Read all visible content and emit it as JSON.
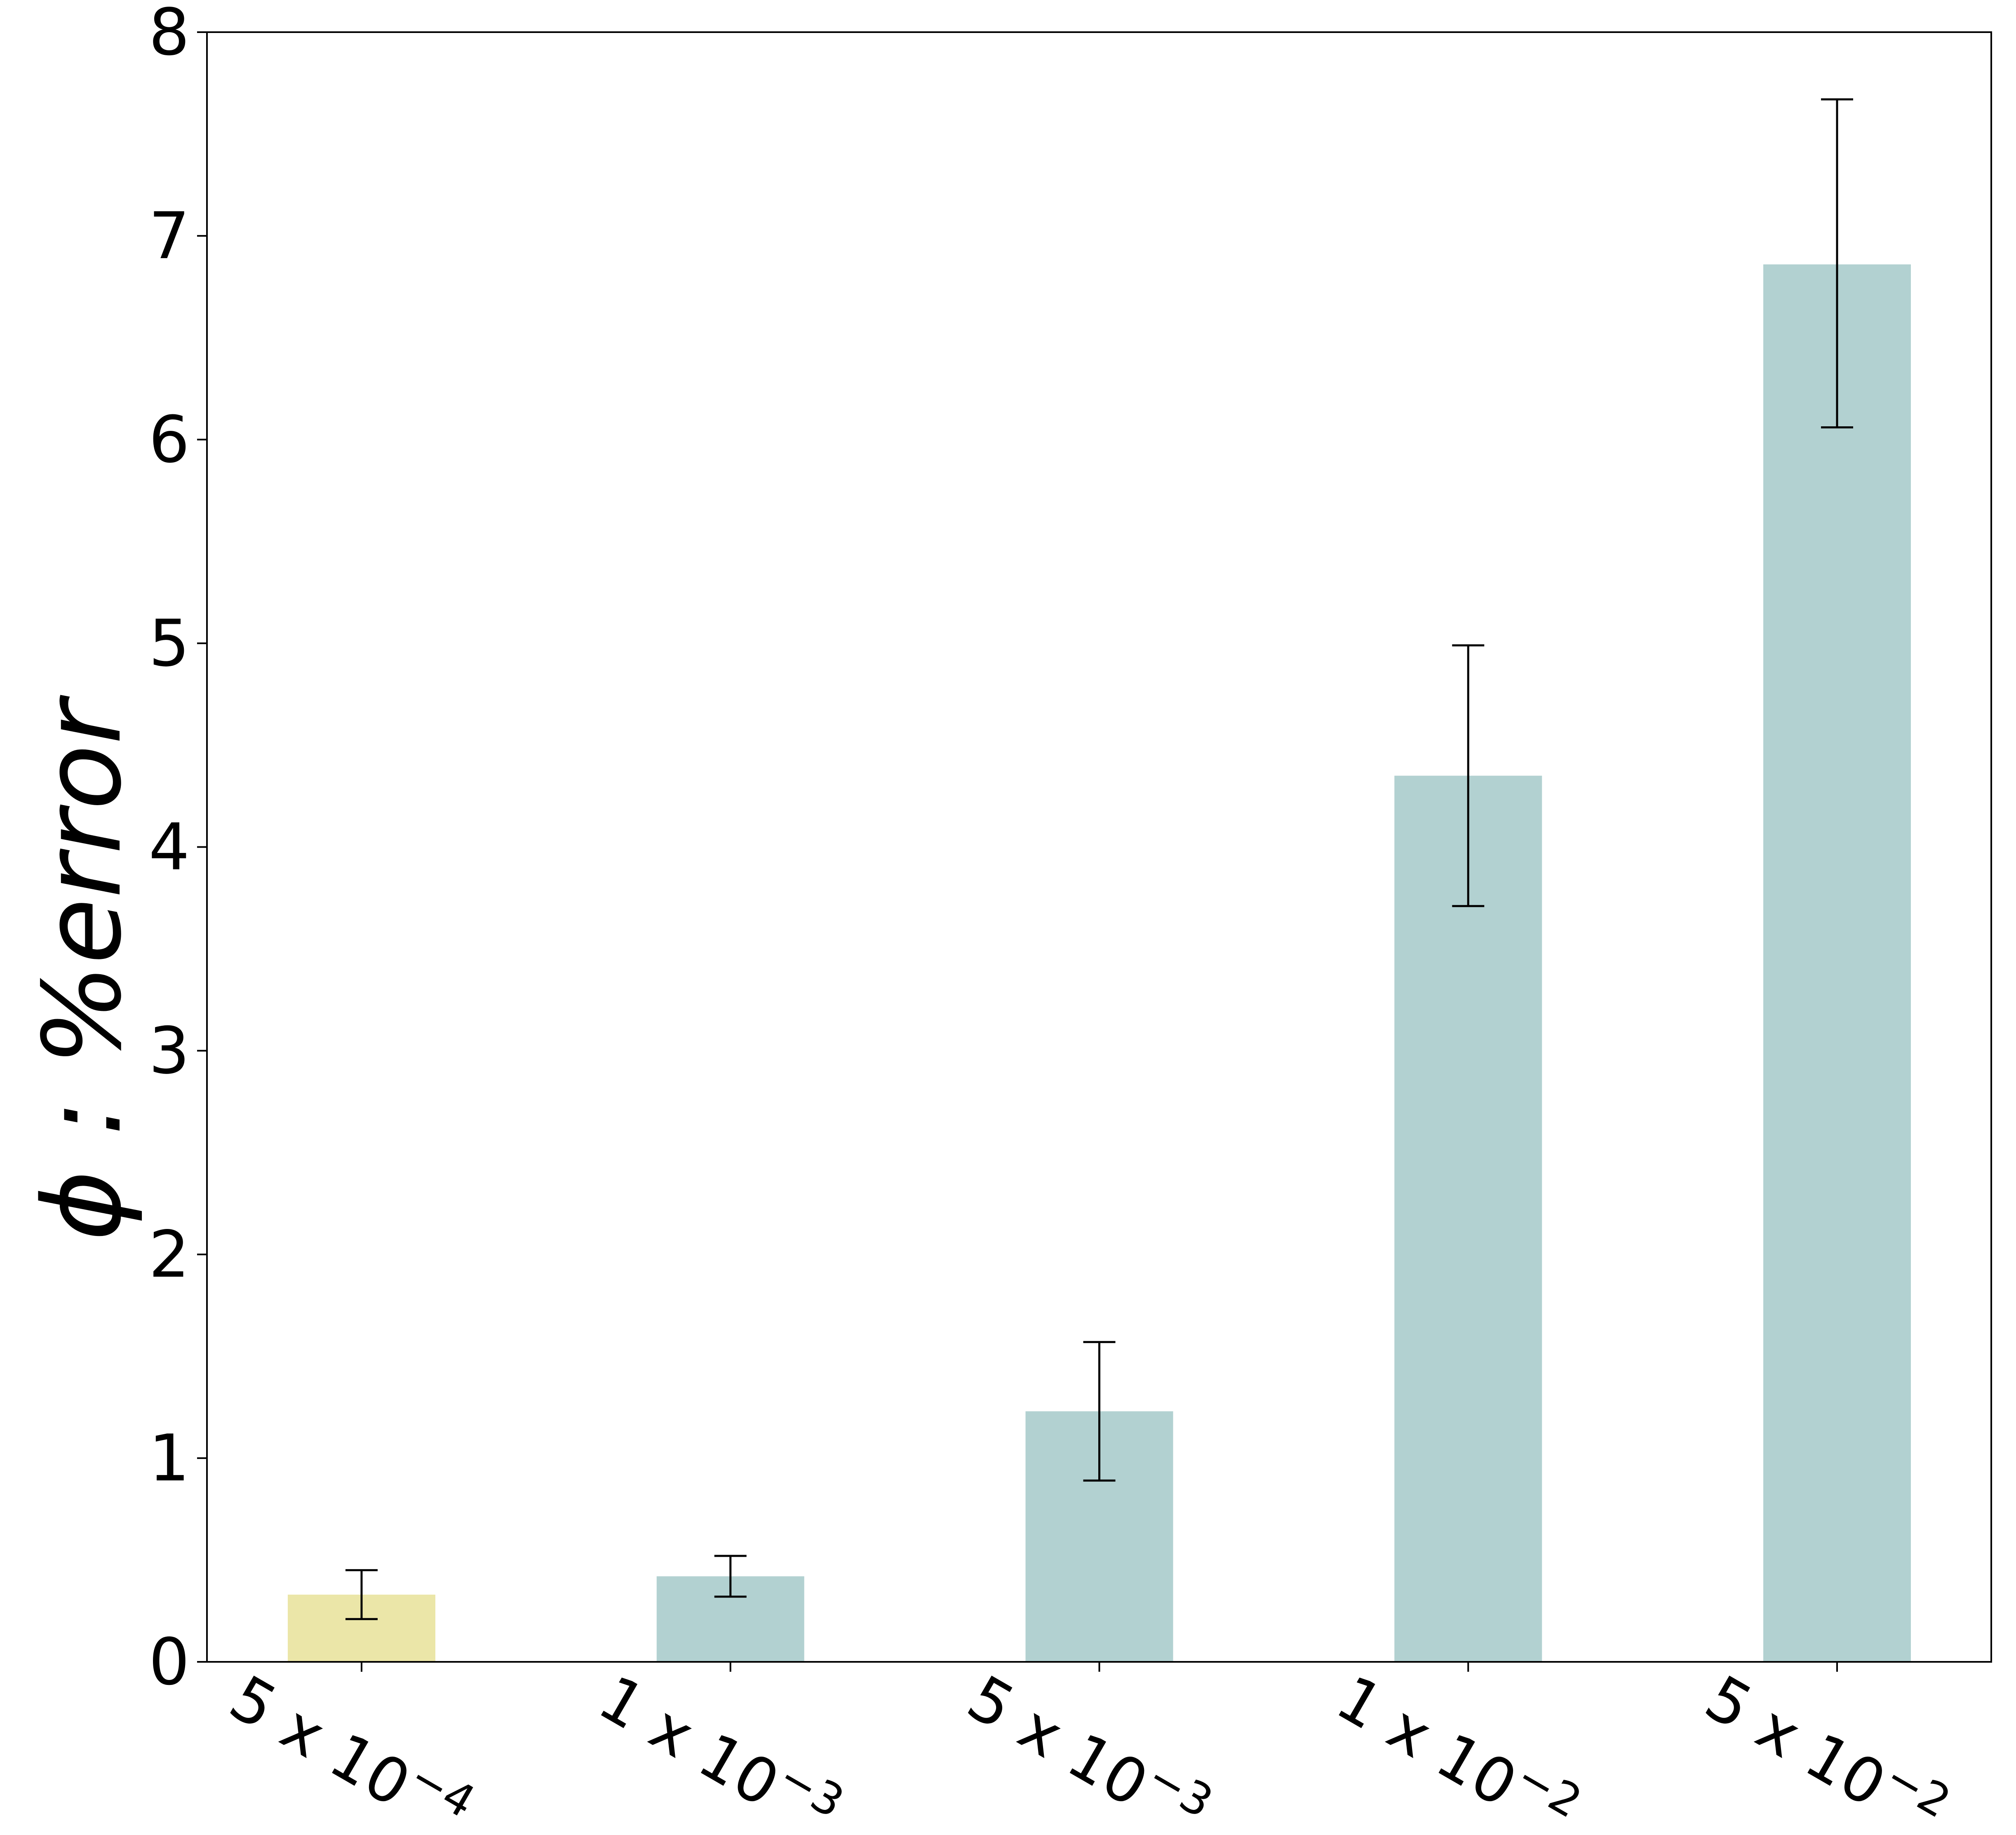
{
  "chart_data": {
    "type": "bar",
    "categories": [
      {
        "base": "5 x 10",
        "exp": "−4"
      },
      {
        "base": "1 x 10",
        "exp": "−3"
      },
      {
        "base": "5 x 10",
        "exp": "−3"
      },
      {
        "base": "1 x 10",
        "exp": "−2"
      },
      {
        "base": "5 x 10",
        "exp": "−2"
      }
    ],
    "values": [
      0.33,
      0.42,
      1.23,
      4.35,
      6.86
    ],
    "error_low": [
      0.21,
      0.32,
      0.89,
      3.71,
      6.06
    ],
    "error_high": [
      0.45,
      0.52,
      1.57,
      4.99,
      7.67
    ],
    "bar_colors": [
      "#ebe6a8",
      "#b2d1d1",
      "#b2d1d1",
      "#b2d1d1",
      "#b2d1d1"
    ],
    "error_color": "#000000",
    "title": "",
    "xlabel": "",
    "ylabel": "ϕ : %error",
    "ylim": [
      0,
      8
    ],
    "yticks": [
      "0",
      "1",
      "2",
      "3",
      "4",
      "5",
      "6",
      "7",
      "8"
    ],
    "grid": false
  }
}
